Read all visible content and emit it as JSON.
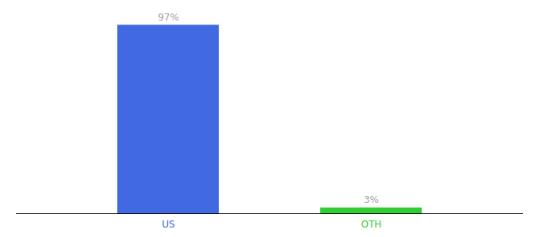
{
  "chart_data": {
    "type": "bar",
    "categories": [
      "US",
      "OTH"
    ],
    "values": [
      97,
      3
    ],
    "colors": [
      "#4169E1",
      "#32CD32"
    ],
    "value_labels": [
      "97%",
      "3%"
    ],
    "data_labels": true,
    "ylim": [
      0,
      100
    ],
    "tick_labels": "x",
    "grid": false
  }
}
